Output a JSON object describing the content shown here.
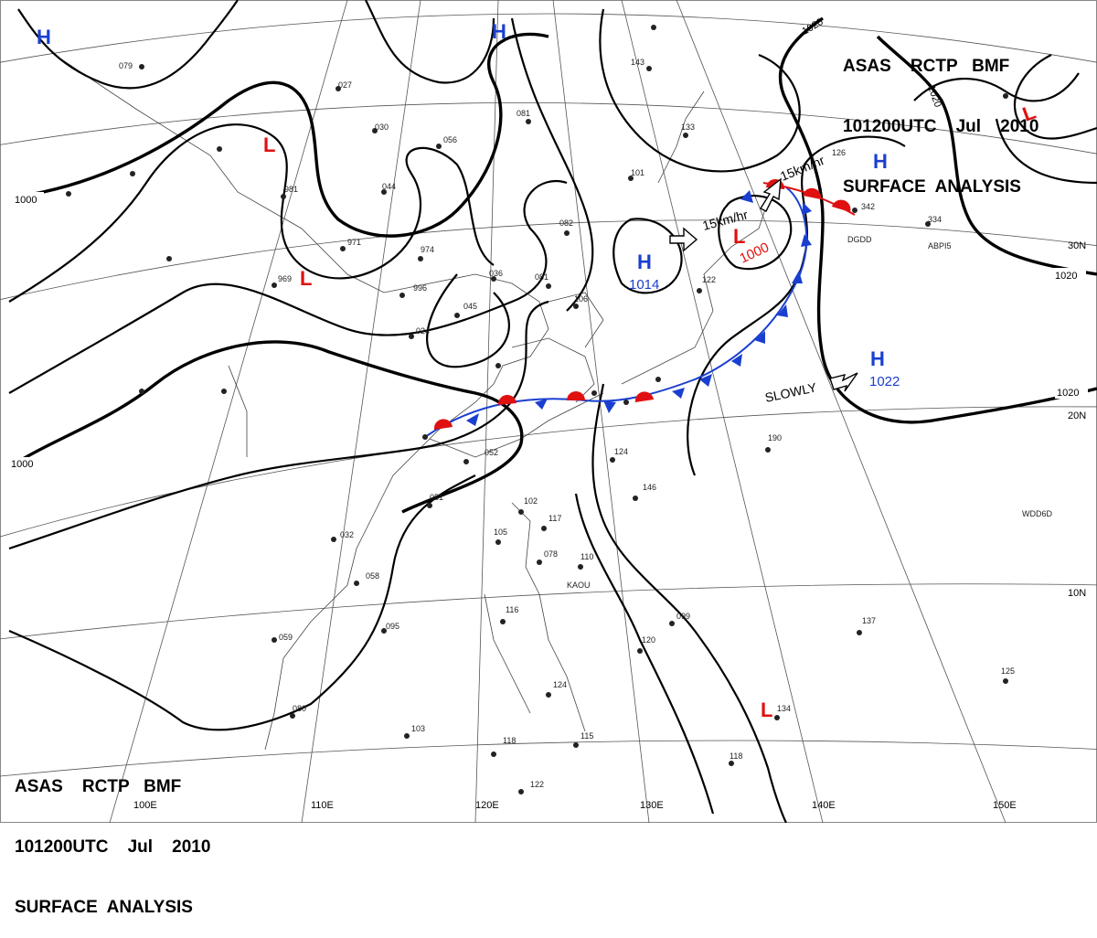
{
  "header_top": {
    "line1": "ASAS    RCTP   BMF",
    "line2": "101200UTC    Jul    2010",
    "line3": "SURFACE  ANALYSIS"
  },
  "header_bottom": {
    "line1": "ASAS    RCTP   BMF",
    "line2": "101200UTC    Jul    2010",
    "line3": "SURFACE  ANALYSIS"
  },
  "colors": {
    "high": "#1a3fd0",
    "low": "#e01010",
    "front_warm": "#e01010",
    "front_cold": "#1a3fd0",
    "isobar": "#000000"
  },
  "longitude_labels": [
    "100E",
    "110E",
    "120E",
    "130E",
    "140E",
    "150E"
  ],
  "latitude_labels": [
    "30N",
    "20N",
    "10N"
  ],
  "isobar_labels": [
    "1000",
    "1000",
    "1020",
    "1020",
    "1020",
    "1020"
  ],
  "pressure_centers": [
    {
      "type": "H",
      "value": ""
    },
    {
      "type": "H",
      "value": ""
    },
    {
      "type": "H",
      "value": ""
    },
    {
      "type": "H",
      "value": "1014"
    },
    {
      "type": "H",
      "value": "1022"
    },
    {
      "type": "L",
      "value": ""
    },
    {
      "type": "L",
      "value": ""
    },
    {
      "type": "L",
      "value": "1000"
    },
    {
      "type": "L",
      "value": ""
    },
    {
      "type": "L",
      "value": ""
    }
  ],
  "annotations": {
    "motion_low_top": "15km/hr",
    "motion_low": "15km/hr",
    "motion_high": "SLOWLY"
  },
  "station_labels": [
    "079",
    "027",
    "081",
    "056",
    "030",
    "101",
    "082",
    "036",
    "081",
    "106",
    "045",
    "024",
    "974",
    "971",
    "969",
    "981",
    "044",
    "996",
    "052",
    "051",
    "032",
    "058",
    "095",
    "059",
    "080",
    "103",
    "118",
    "122",
    "115",
    "124",
    "116",
    "102",
    "117",
    "105",
    "078",
    "110",
    "146",
    "124",
    "120",
    "099",
    "190",
    "137",
    "125",
    "134",
    "118",
    "143",
    "133",
    "122",
    "126",
    "342",
    "334",
    "KAOU",
    "DGDD",
    "ABPI5",
    "WDD6D"
  ]
}
